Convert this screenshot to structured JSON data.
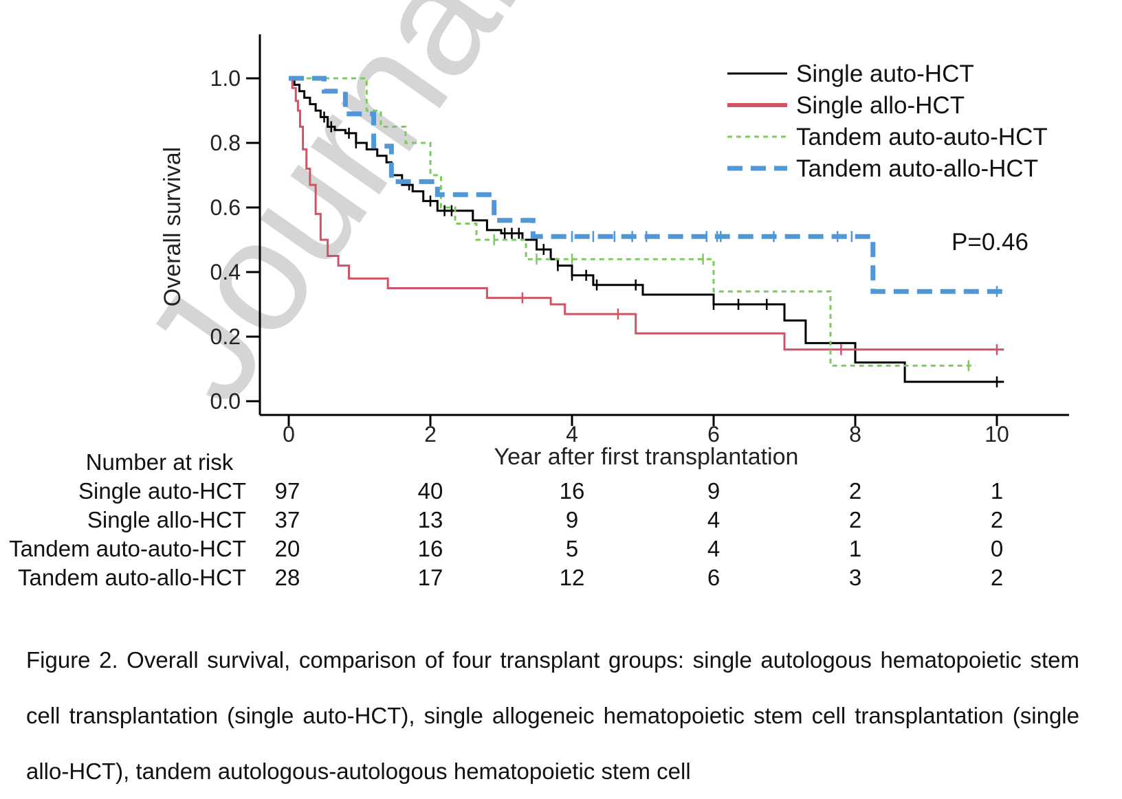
{
  "watermark": "Journal Pre-proof",
  "chart_data": {
    "type": "line",
    "step": true,
    "xlabel": "Year after first transplantation",
    "ylabel": "Overall survival",
    "xlim": [
      0,
      11
    ],
    "ylim": [
      0,
      1.1
    ],
    "xticks": [
      0,
      2,
      4,
      6,
      8,
      10
    ],
    "yticks": [
      0.0,
      0.2,
      0.4,
      0.6,
      0.8,
      1.0
    ],
    "annotation": "P=0.46",
    "legend_position": "top-right",
    "series": [
      {
        "name": "Single auto-HCT",
        "color": "#000000",
        "dash": "solid",
        "x": [
          0,
          0.08,
          0.15,
          0.22,
          0.3,
          0.38,
          0.45,
          0.55,
          0.65,
          0.8,
          0.95,
          1.1,
          1.25,
          1.38,
          1.45,
          1.6,
          1.75,
          1.9,
          2.1,
          2.6,
          2.8,
          3.0,
          3.3,
          3.5,
          3.7,
          3.8,
          4.0,
          4.3,
          5.0,
          5.4,
          6.0,
          7.0,
          7.3,
          8.0,
          8.7,
          10.1
        ],
        "y": [
          1.0,
          0.98,
          0.96,
          0.94,
          0.92,
          0.9,
          0.88,
          0.85,
          0.84,
          0.83,
          0.8,
          0.78,
          0.76,
          0.74,
          0.7,
          0.67,
          0.65,
          0.62,
          0.59,
          0.56,
          0.53,
          0.52,
          0.5,
          0.47,
          0.44,
          0.42,
          0.39,
          0.36,
          0.33,
          0.33,
          0.3,
          0.25,
          0.18,
          0.12,
          0.06,
          0.06
        ],
        "censor": [
          0.5,
          0.6,
          0.85,
          0.95,
          1.7,
          2.0,
          2.2,
          2.3,
          3.05,
          3.15,
          3.25,
          3.6,
          3.8,
          4.0,
          4.2,
          4.35,
          4.9,
          6.0,
          6.35,
          6.75,
          10.0
        ]
      },
      {
        "name": "Single allo-HCT",
        "color": "#cd5565",
        "dash": "solid",
        "x": [
          0,
          0.05,
          0.1,
          0.13,
          0.16,
          0.2,
          0.25,
          0.3,
          0.38,
          0.45,
          0.55,
          0.7,
          0.85,
          1.4,
          2.8,
          3.7,
          3.9,
          4.9,
          7.0,
          10.1
        ],
        "y": [
          1.0,
          0.97,
          0.93,
          0.9,
          0.85,
          0.78,
          0.72,
          0.67,
          0.58,
          0.5,
          0.45,
          0.42,
          0.38,
          0.35,
          0.32,
          0.3,
          0.27,
          0.21,
          0.16,
          0.16
        ],
        "censor": [
          3.3,
          4.65,
          7.8,
          10.0
        ]
      },
      {
        "name": "Tandem auto-auto-HCT",
        "color": "#7ec95f",
        "dash": "short-dash",
        "x": [
          0,
          1.1,
          1.3,
          1.65,
          2.0,
          2.15,
          2.35,
          2.65,
          2.75,
          3.35,
          6.0,
          7.65,
          9.7
        ],
        "y": [
          1.0,
          0.9,
          0.85,
          0.8,
          0.7,
          0.6,
          0.55,
          0.5,
          0.5,
          0.44,
          0.34,
          0.11,
          0.11
        ],
        "censor": [
          2.9,
          3.5,
          4.0,
          5.85,
          9.6
        ]
      },
      {
        "name": "Tandem auto-allo-HCT",
        "color": "#4f97d8",
        "dash": "long-dash",
        "x": [
          0,
          0.5,
          0.8,
          1.2,
          1.45,
          2.1,
          2.9,
          3.45,
          8.25,
          10.1
        ],
        "y": [
          1.0,
          0.96,
          0.89,
          0.79,
          0.68,
          0.64,
          0.56,
          0.51,
          0.34,
          0.34
        ],
        "censor": [
          4.0,
          4.3,
          4.6,
          4.85,
          5.05,
          5.9,
          6.05,
          6.1,
          6.85,
          7.75,
          7.95,
          10.0
        ]
      }
    ]
  },
  "risk_table": {
    "title": "Number at risk",
    "time_points": [
      0,
      2,
      4,
      6,
      8,
      10
    ],
    "rows": [
      {
        "label": "Single auto-HCT",
        "values": [
          "97",
          "40",
          "16",
          "9",
          "2",
          "1"
        ]
      },
      {
        "label": "Single allo-HCT",
        "values": [
          "37",
          "13",
          "9",
          "4",
          "2",
          "2"
        ]
      },
      {
        "label": "Tandem auto-auto-HCT",
        "values": [
          "20",
          "16",
          "5",
          "4",
          "1",
          "0"
        ]
      },
      {
        "label": "Tandem auto-allo-HCT",
        "values": [
          "28",
          "17",
          "12",
          "6",
          "3",
          "2"
        ]
      }
    ]
  },
  "caption": "Figure 2. Overall survival, comparison of four transplant groups: single autologous hematopoietic stem cell transplantation (single auto-HCT), single allogeneic hematopoietic stem cell transplantation (single allo-HCT), tandem autologous-autologous hematopoietic stem cell"
}
